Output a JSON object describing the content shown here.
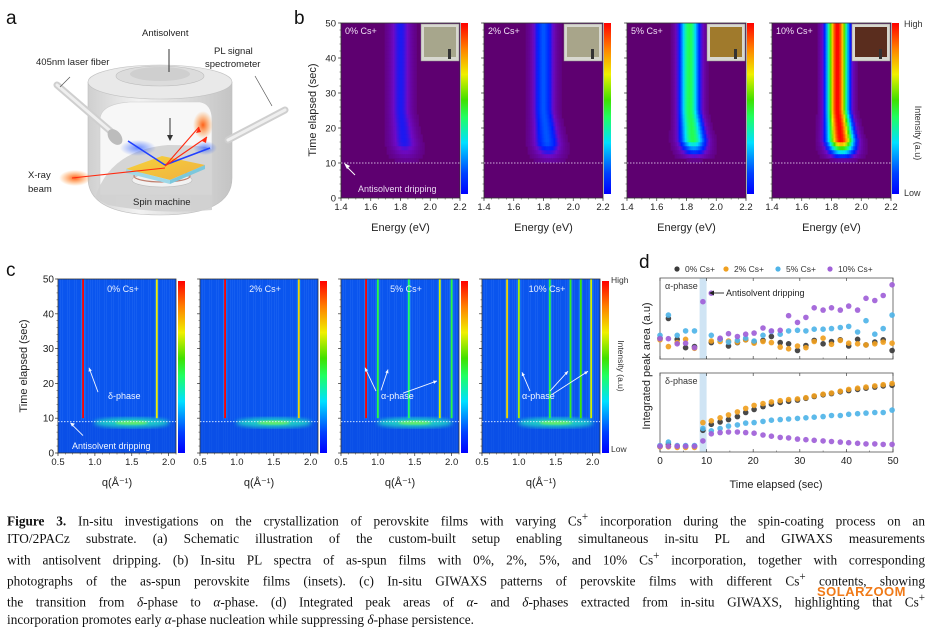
{
  "panel_labels": {
    "a": "a",
    "b": "b",
    "c": "c",
    "d": "d"
  },
  "schematic": {
    "labels": {
      "antisolvent": "Antisolvent",
      "laser_fiber": "405nm laser fiber",
      "pl_signal_line1": "PL signal",
      "pl_signal_line2": "spectrometer",
      "xray_line1": "X-ray",
      "xray_line2": "beam",
      "spin_machine": "Spin machine"
    }
  },
  "chart_data": [
    {
      "id": "b",
      "type": "heatmap",
      "title": "In-situ PL spectra",
      "xlabel": "Energy (eV)",
      "ylabel": "Time elapsed (sec)",
      "xlim": [
        1.4,
        2.2
      ],
      "ylim": [
        0,
        50
      ],
      "xticks": [
        "1.4",
        "1.6",
        "1.8",
        "2.0",
        "2.2"
      ],
      "yticks": [
        "0",
        "10",
        "20",
        "30",
        "40",
        "50"
      ],
      "colorbar": {
        "label": "Intensity (a.u)",
        "high": "High",
        "low": "Low"
      },
      "annotation": {
        "text": "Antisolvent dripping",
        "time": 10
      },
      "panels": [
        {
          "label": "0% Cs+",
          "peak_energy": 1.8,
          "onset_time": 11,
          "relative_max_intensity": 0.18,
          "inset_film_color": "#a7a68c"
        },
        {
          "label": "2% Cs+",
          "peak_energy": 1.8,
          "onset_time": 11,
          "relative_max_intensity": 0.28,
          "inset_film_color": "#a8a58a"
        },
        {
          "label": "5% Cs+",
          "peak_energy": 1.82,
          "onset_time": 12,
          "relative_max_intensity": 0.55,
          "inset_film_color": "#a07a2c"
        },
        {
          "label": "10% Cs+",
          "peak_energy": 1.84,
          "onset_time": 12,
          "relative_max_intensity": 1.0,
          "inset_film_color": "#5a2d1e"
        }
      ]
    },
    {
      "id": "c",
      "type": "heatmap",
      "title": "In-situ GIWAXS patterns",
      "xlabel": "q(Å⁻¹)",
      "ylabel": "Time elapsed (sec)",
      "xlim": [
        0.5,
        2.1
      ],
      "ylim": [
        0,
        50
      ],
      "xticks": [
        "0.5",
        "1.0",
        "1.5",
        "2.0"
      ],
      "yticks": [
        "0",
        "10",
        "20",
        "30",
        "40",
        "50"
      ],
      "colorbar": {
        "label": "Intensity (a.u)",
        "high": "High",
        "low": "Low"
      },
      "dripping_time": 9,
      "panels": [
        {
          "label": "0% Cs+",
          "annotation": "δ-phase",
          "annotation2": "Antisolvent dripping",
          "lines": [
            {
              "q": 0.84,
              "intensity": 1.0
            },
            {
              "q": 1.84,
              "intensity": 0.55
            }
          ]
        },
        {
          "label": "2% Cs+",
          "annotation": "",
          "lines": [
            {
              "q": 0.84,
              "intensity": 1.0
            },
            {
              "q": 1.84,
              "intensity": 0.6
            }
          ]
        },
        {
          "label": "5% Cs+",
          "annotation": "α-phase",
          "lines": [
            {
              "q": 0.84,
              "intensity": 1.0
            },
            {
              "q": 1.0,
              "intensity": 0.2
            },
            {
              "q": 1.42,
              "intensity": 0.15
            },
            {
              "q": 1.84,
              "intensity": 0.5
            },
            {
              "q": 2.0,
              "intensity": 0.2
            }
          ]
        },
        {
          "label": "10% Cs+",
          "annotation": "α-phase",
          "lines": [
            {
              "q": 0.84,
              "intensity": 0.6
            },
            {
              "q": 1.0,
              "intensity": 0.45
            },
            {
              "q": 1.42,
              "intensity": 0.2
            },
            {
              "q": 1.7,
              "intensity": 0.25
            },
            {
              "q": 1.84,
              "intensity": 0.3
            },
            {
              "q": 1.98,
              "intensity": 0.5
            }
          ]
        }
      ]
    },
    {
      "id": "d",
      "type": "scatter",
      "title": "Integrated peak areas",
      "xlabel": "Time elapsed (sec)",
      "ylabel": "Integrated peak area (a.u)",
      "xlim": [
        0,
        50
      ],
      "xticks": [
        "0",
        "10",
        "20",
        "30",
        "40",
        "50"
      ],
      "legend": {
        "position": "top",
        "entries": [
          "0% Cs+",
          "2% Cs+",
          "5% Cs+",
          "10% Cs+"
        ]
      },
      "series_colors": {
        "0% Cs+": "#3a3a3a",
        "2% Cs+": "#f0a020",
        "5% Cs+": "#4fb4e8",
        "10% Cs+": "#a060d8"
      },
      "dripping_band": [
        8.5,
        10
      ],
      "annotation": "Antisolvent dripping",
      "x": [
        0,
        1.8,
        3.7,
        5.5,
        7.4,
        9.2,
        11,
        12.9,
        14.7,
        16.6,
        18.4,
        20.2,
        22.1,
        23.9,
        25.8,
        27.6,
        29.5,
        31.3,
        33.1,
        35,
        36.8,
        38.7,
        40.5,
        42.4,
        44.2,
        46.1,
        47.9,
        49.8
      ],
      "subplots": [
        {
          "name": "α-phase",
          "series": [
            {
              "name": "0% Cs+",
              "values": [
                0.3,
                0.65,
                0.28,
                0.13,
                0.15,
                null,
                0.22,
                0.28,
                0.16,
                0.22,
                0.27,
                0.23,
                0.26,
                0.33,
                0.22,
                0.2,
                0.08,
                0.17,
                0.26,
                0.2,
                0.24,
                0.27,
                0.16,
                0.28,
                0.18,
                0.23,
                0.27,
                0.08
              ]
            },
            {
              "name": "2% Cs+",
              "values": [
                0.27,
                0.15,
                0.22,
                0.28,
                0.12,
                null,
                0.25,
                0.24,
                0.25,
                0.23,
                0.27,
                0.21,
                0.24,
                0.22,
                0.14,
                0.11,
                0.16,
                0.13,
                0.24,
                0.3,
                0.19,
                0.26,
                0.21,
                0.2,
                0.18,
                0.2,
                0.23,
                0.21
              ]
            },
            {
              "name": "5% Cs+",
              "values": [
                0.35,
                0.71,
                0.35,
                0.43,
                0.43,
                null,
                0.35,
                0.28,
                0.23,
                0.26,
                0.3,
                0.25,
                0.35,
                0.42,
                0.37,
                0.43,
                0.44,
                0.43,
                0.46,
                0.46,
                0.47,
                0.49,
                0.51,
                0.41,
                0.61,
                0.37,
                0.47,
                0.71
              ]
            },
            {
              "name": "10% Cs+",
              "values": [
                0.29,
                0.29,
                0.2,
                0.21,
                0.13,
                0.95,
                1.1,
                0.3,
                0.38,
                0.33,
                0.37,
                0.39,
                0.48,
                0.43,
                0.44,
                0.7,
                0.58,
                0.67,
                0.84,
                0.8,
                0.84,
                0.8,
                0.87,
                0.8,
                1.01,
                0.97,
                1.06,
                1.25
              ]
            }
          ]
        },
        {
          "name": "δ-phase",
          "series": [
            {
              "name": "0% Cs+",
              "values": [
                0.03,
                0.06,
                0.03,
                0.03,
                0.03,
                0.3,
                0.4,
                0.44,
                0.48,
                0.53,
                0.6,
                0.65,
                0.7,
                0.74,
                0.77,
                0.79,
                0.81,
                0.84,
                0.87,
                0.9,
                0.92,
                0.95,
                0.97,
                0.99,
                1.01,
                1.03,
                1.05,
                1.06
              ]
            },
            {
              "name": "2% Cs+",
              "values": [
                0.02,
                0.02,
                0.01,
                0.01,
                0.01,
                0.43,
                0.46,
                0.51,
                0.56,
                0.61,
                0.67,
                0.72,
                0.75,
                0.78,
                0.8,
                0.82,
                0.83,
                0.85,
                0.88,
                0.91,
                0.93,
                0.96,
                0.99,
                1.01,
                1.03,
                1.05,
                1.07,
                1.09
              ]
            },
            {
              "name": "5% Cs+",
              "values": [
                0.04,
                0.1,
                0.04,
                0.04,
                0.04,
                0.33,
                0.29,
                0.33,
                0.37,
                0.39,
                0.42,
                0.43,
                0.45,
                0.47,
                0.48,
                0.49,
                0.5,
                0.51,
                0.52,
                0.53,
                0.55,
                0.55,
                0.57,
                0.58,
                0.59,
                0.6,
                0.6,
                0.64
              ]
            },
            {
              "name": "10% Cs+",
              "values": [
                0.03,
                0.03,
                0.03,
                0.03,
                0.03,
                0.12,
                0.24,
                0.26,
                0.27,
                0.27,
                0.26,
                0.25,
                0.22,
                0.2,
                0.18,
                0.17,
                0.15,
                0.14,
                0.13,
                0.12,
                0.11,
                0.1,
                0.09,
                0.08,
                0.07,
                0.07,
                0.06,
                0.06
              ]
            }
          ]
        }
      ]
    }
  ],
  "caption": {
    "lines": [
      "<b>Figure 3.</b> In-situ investigations on the crystallization of perovskite films with varying Cs<sup>+</sup> incorporation during the spin-coating process on an",
      "ITO/2PACz substrate. (a) Schematic illustration of the custom-built setup enabling simultaneous in-situ PL and GIWAXS measurements",
      "with antisolvent dripping. (b) In-situ PL spectra of as-spun films with 0%, 2%, 5%, and 10% Cs<sup>+</sup> incorporation, together with corresponding",
      "photographs of the as-spun perovskite films (insets). (c) In-situ GIWAXS patterns of perovskite films with different Cs<sup>+</sup> contents, showing",
      "the transition from <i>δ</i>-phase to <i>α</i>-phase. (d) Integrated peak areas of <i>α</i>- and <i>δ</i>-phases extracted from in-situ GIWAXS, highlighting that Cs<sup>+</sup>",
      "incorporation promotes early <i>α</i>-phase nucleation while suppressing <i>δ</i>-phase persistence."
    ]
  },
  "watermark": "SOLARZOOM"
}
